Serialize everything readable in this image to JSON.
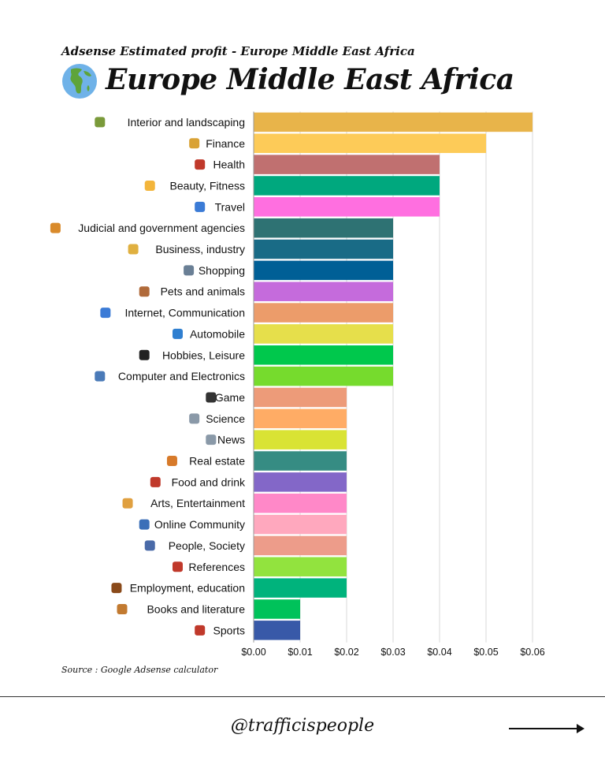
{
  "header": {
    "subtitle": "Adsense Estimated profit - Europe Middle East Africa",
    "title": "Europe Middle East Africa",
    "icon": "globe-europe-africa-icon"
  },
  "chart_data": {
    "type": "bar",
    "orientation": "horizontal",
    "title": "Europe Middle East Africa",
    "xlabel": "",
    "ylabel": "",
    "xlim": [
      0,
      0.06
    ],
    "grid": true,
    "tick_labels": [
      "$0.00",
      "$0.01",
      "$0.02",
      "$0.03",
      "$0.04",
      "$0.05",
      "$0.06"
    ],
    "categories": [
      "Interior and landscaping",
      "Finance",
      "Health",
      "Beauty, Fitness",
      "Travel",
      "Judicial and government agencies",
      "Business, industry",
      "Shopping",
      "Pets and animals",
      "Internet, Communication",
      "Automobile",
      "Hobbies, Leisure",
      "Computer and Electronics",
      "Game",
      "Science",
      "News",
      "Real estate",
      "Food and drink",
      "Arts, Entertainment",
      "Online Community",
      "People, Society",
      "References",
      "Employment, education",
      "Books and literature",
      "Sports"
    ],
    "values": [
      0.06,
      0.05,
      0.04,
      0.04,
      0.04,
      0.03,
      0.03,
      0.03,
      0.03,
      0.03,
      0.03,
      0.03,
      0.03,
      0.02,
      0.02,
      0.02,
      0.02,
      0.02,
      0.02,
      0.02,
      0.02,
      0.02,
      0.02,
      0.01,
      0.01
    ],
    "colors": [
      "#e8b44a",
      "#fdcb58",
      "#c07070",
      "#00a87e",
      "#ff6fe0",
      "#2e7273",
      "#196b86",
      "#005f96",
      "#c56bdc",
      "#ec9c6a",
      "#e6df4b",
      "#00c84c",
      "#76db2d",
      "#ed9b79",
      "#ffac65",
      "#d9e334",
      "#368c83",
      "#8367c8",
      "#ff88c8",
      "#ffa8be",
      "#ed9c8a",
      "#92e33e",
      "#00b37c",
      "#00c25a",
      "#3859a8"
    ],
    "icon_names": [
      "house-garden-icon",
      "money-bag-icon",
      "pill-icon",
      "flexed-biceps-icon",
      "luggage-icon",
      "balance-scale-icon",
      "factory-worker-icon",
      "shopping-cart-icon",
      "dog-icon",
      "globe-meridians-icon",
      "car-icon",
      "billiard-ball-icon",
      "laptop-icon",
      "game-controller-icon",
      "microscope-icon",
      "newspaper-icon",
      "cityscape-icon",
      "bento-box-icon",
      "artist-icon",
      "people-hugging-icon",
      "speaking-people-icon",
      "bookmark-icon",
      "briefcase-icon",
      "books-icon",
      "cyclist-icon"
    ],
    "icon_colors": [
      "#7a9a3a",
      "#d9a235",
      "#c0392b",
      "#f3b53b",
      "#3b7bd6",
      "#d98a2b",
      "#e0b040",
      "#6a7f95",
      "#b06a3a",
      "#3b7bd6",
      "#2f7fd0",
      "#222222",
      "#4a7ab8",
      "#333333",
      "#8a99a8",
      "#8a99a8",
      "#d77a2a",
      "#c0392b",
      "#e0a040",
      "#3b6fb8",
      "#4a6aa8",
      "#c0392b",
      "#8a4a1a",
      "#c27a30",
      "#c0392b"
    ]
  },
  "footer": {
    "source": "Source : Google Adsense calculator",
    "handle": "@trafficispeople",
    "arrow_icon": "right-arrow-icon"
  }
}
